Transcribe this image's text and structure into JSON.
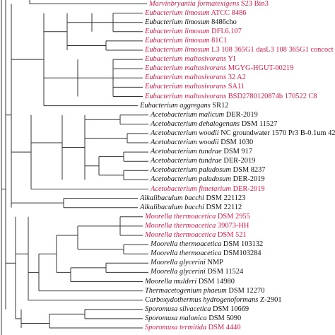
{
  "colors": {
    "highlight": "#d81b4b",
    "normal": "#111111",
    "branch": "#333333"
  },
  "taxa": [
    {
      "species": "Marvinbryantia formatexigens",
      "strain": "S23 Bin3",
      "highlight": true
    },
    {
      "species": "Eubacterium limosum",
      "strain": "ATCC 8486",
      "highlight": true
    },
    {
      "species": "Eubacterium limosum",
      "strain": "8486cho",
      "highlight": false
    },
    {
      "species": "Eubacterium limosum",
      "strain": "DFI.6.107",
      "highlight": true
    },
    {
      "species": "Eubacterium limosum",
      "strain": "81C1",
      "highlight": true
    },
    {
      "species": "Eubacterium limosum",
      "strain": "L3 108 365G1 dasL3 108 365G1 concoct 69",
      "highlight": true
    },
    {
      "species": "Eubacterium maltosivorans",
      "strain": "YI",
      "highlight": true
    },
    {
      "species": "Eubacterium maltosivorans",
      "strain": "MGYG-HGUT-00219",
      "highlight": true
    },
    {
      "species": "Eubacterium maltosivorans",
      "strain": "32 A2",
      "highlight": true
    },
    {
      "species": "Eubacterium maltosivorans",
      "strain": "SA11",
      "highlight": true
    },
    {
      "species": "Eubacterium maltosivorans",
      "strain": "BSD2780120874b 170522 C8",
      "highlight": true
    },
    {
      "species": "Eubacterium aggregans",
      "strain": "SR12",
      "highlight": false
    },
    {
      "species": "Acetobacterium malicum",
      "strain": "DER-2019",
      "highlight": false
    },
    {
      "species": "Acetobacterium dehalogenans",
      "strain": "DSM 11527",
      "highlight": false
    },
    {
      "species": "Acetobacterium woodii",
      "strain": "NC groundwater 1570 Pr3 B-0.1um 42 151",
      "highlight": false
    },
    {
      "species": "Acetobacterium woodii",
      "strain": "DSM 1030",
      "highlight": false
    },
    {
      "species": "Acetobacterium tundrae",
      "strain": "DSM 917",
      "highlight": false
    },
    {
      "species": "Acetobacterium tundrae",
      "strain": "DER-2019",
      "highlight": false
    },
    {
      "species": "Acetobacterium paludosum",
      "strain": "DSM 8237",
      "highlight": false
    },
    {
      "species": "Acetobacterium paludosum",
      "strain": "DER-2019",
      "highlight": false
    },
    {
      "species": "Acetobacterium fimetarium",
      "strain": "DER-2019",
      "highlight": true
    },
    {
      "species": "Alkalibaculum bacchi",
      "strain": "DSM 221123",
      "highlight": false
    },
    {
      "species": "Alkalibaculum bacchi",
      "strain": "DSM 22112",
      "highlight": false
    },
    {
      "species": "Moorella thermoacetica",
      "strain": "DSM 2955",
      "highlight": true
    },
    {
      "species": "Moorella thermoacetica",
      "strain": "39073-HH",
      "highlight": true
    },
    {
      "species": "Moorella thermoacetica",
      "strain": "DSM 521",
      "highlight": true
    },
    {
      "species": "Moorella thermoacetica",
      "strain": "DSM 103132",
      "highlight": false
    },
    {
      "species": "Moorella thermoacetica",
      "strain": "DSM103284",
      "highlight": false
    },
    {
      "species": "Moorella glycerini",
      "strain": "NMP",
      "highlight": false
    },
    {
      "species": "Moorella glycerini",
      "strain": "DSM 11524",
      "highlight": false
    },
    {
      "species": "Moorella mulderi",
      "strain": "DSM 14980",
      "highlight": false
    },
    {
      "species": "Thermacetogenium phaeum",
      "strain": "DSM 12270",
      "highlight": false
    },
    {
      "species": "Carboxydothermus hydrogenoformans",
      "strain": "Z-2901",
      "highlight": false
    },
    {
      "species": "Sporomusa silvacetica",
      "strain": "DSM 10669",
      "highlight": false
    },
    {
      "species": "Sporomusa malonica",
      "strain": "DSM 5090",
      "highlight": false
    },
    {
      "species": "Sporomusa termitida",
      "strain": "DSM 4440",
      "highlight": true
    }
  ]
}
